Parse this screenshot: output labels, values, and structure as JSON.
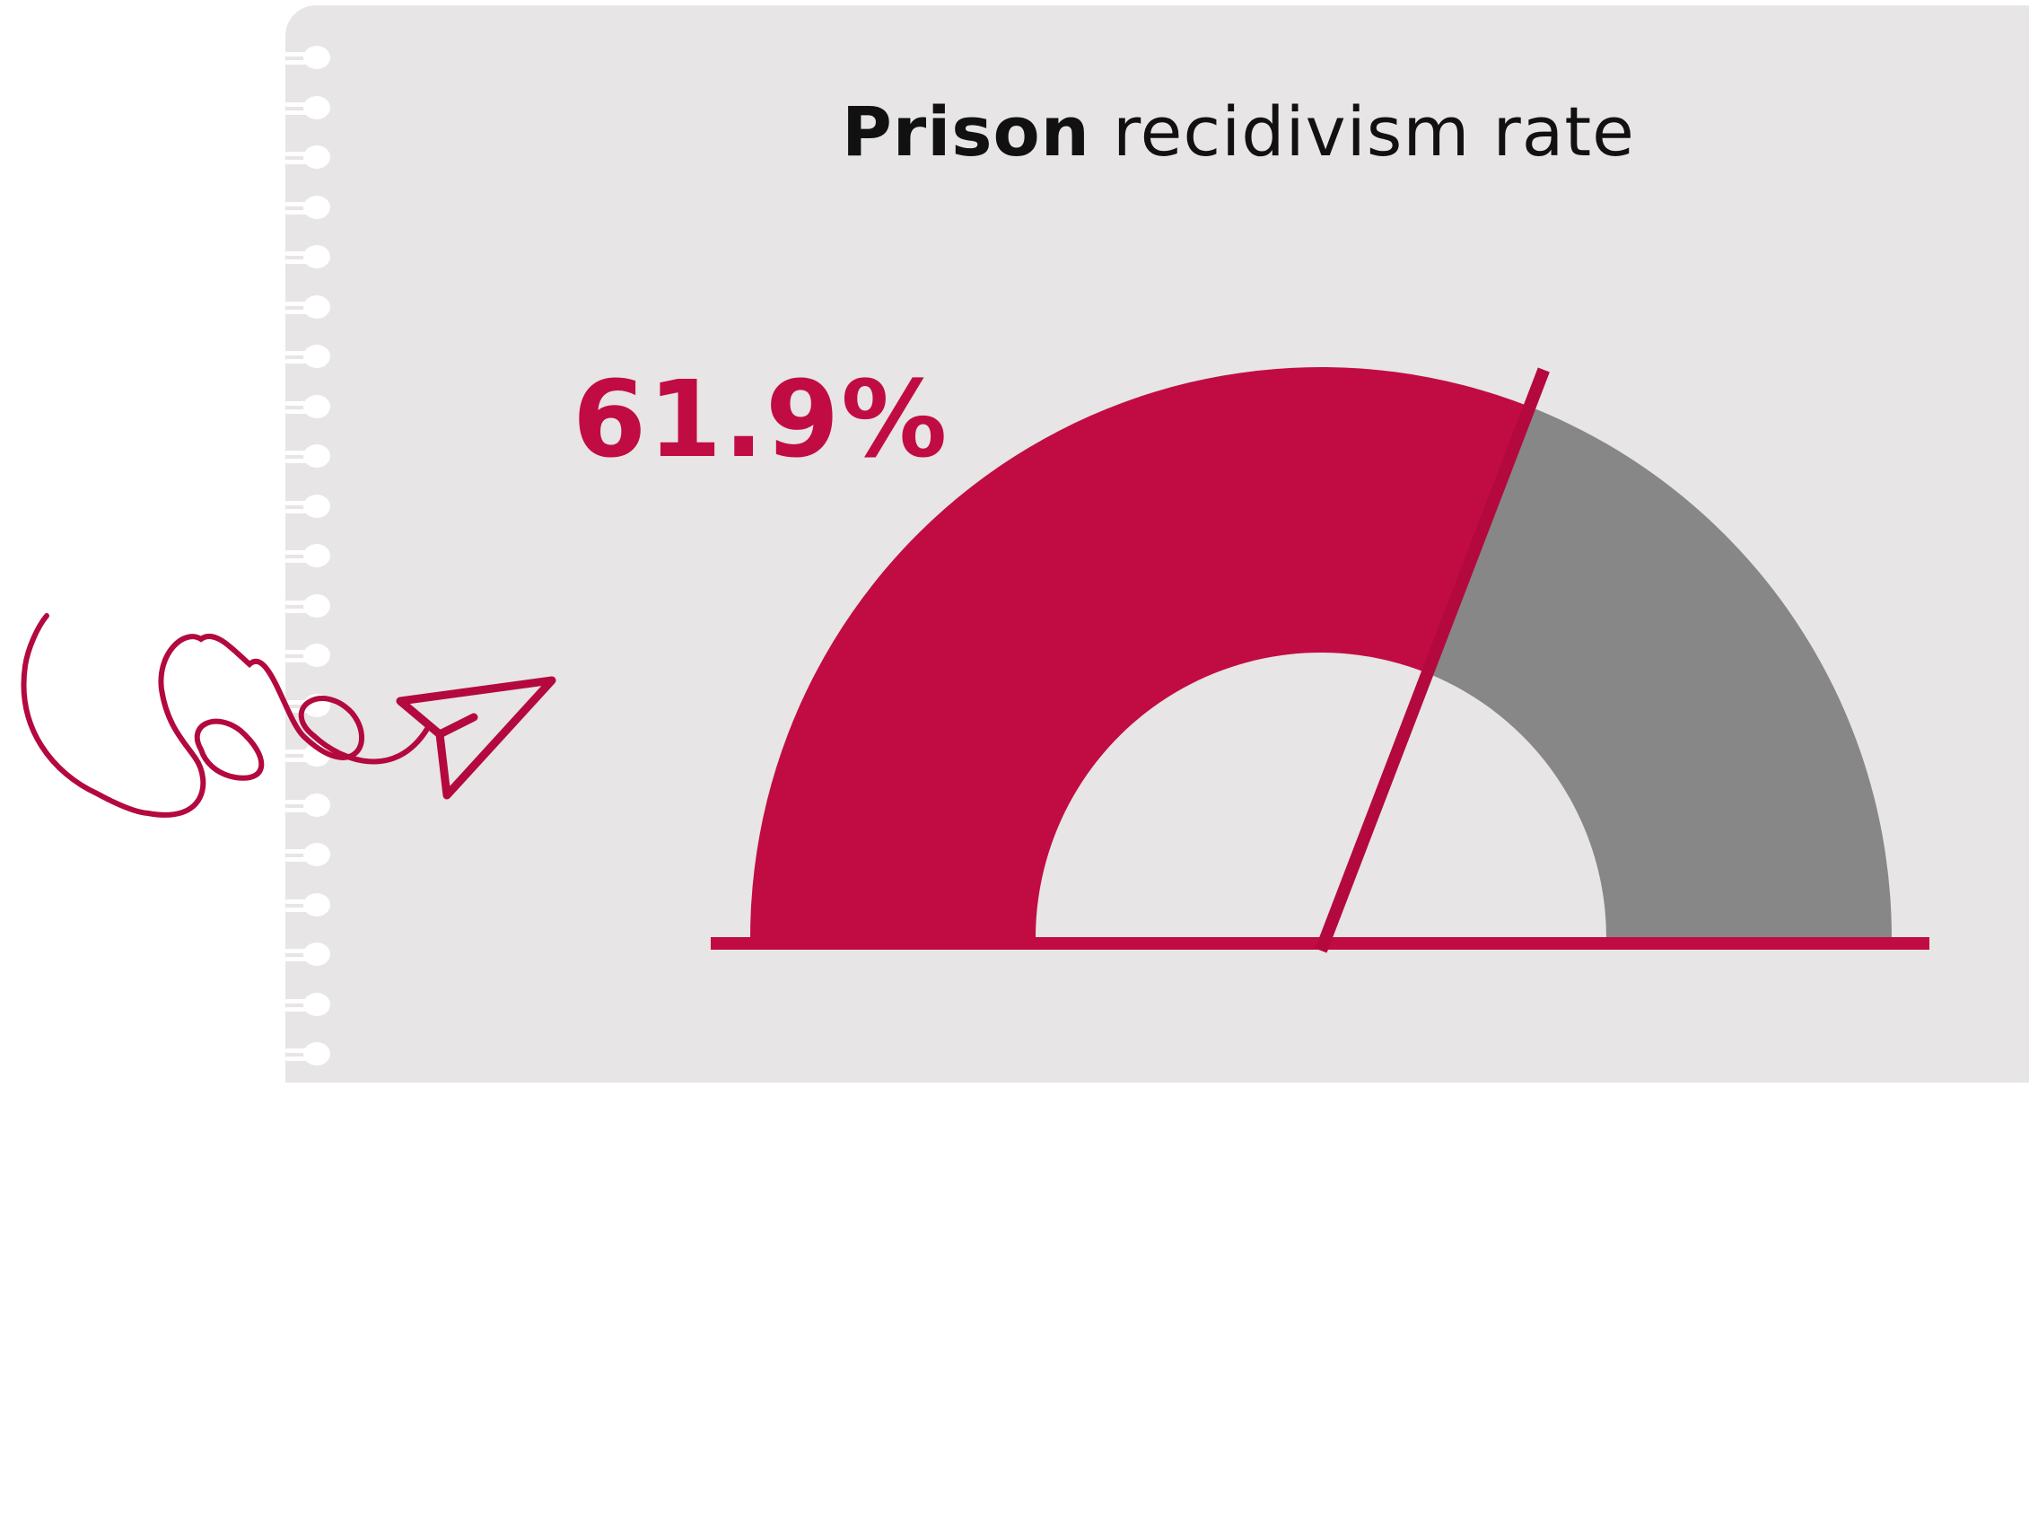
{
  "colors": {
    "accent": "#c10c43",
    "remainder": "#878787",
    "paper": "#e7e5e6",
    "needle": "#b3093f"
  },
  "title": {
    "bold": "Prison",
    "regular": "recidivism rate"
  },
  "value_label": "61.9%",
  "decorations": [
    "spiral-binding",
    "paper-plane-icon",
    "loop-doodle"
  ],
  "chart_data": {
    "type": "gauge",
    "title": "Prison recidivism rate",
    "value": 61.9,
    "unit": "%",
    "range": [
      0,
      100
    ],
    "segments": [
      {
        "value": 61.9,
        "color": "#c10c43"
      },
      {
        "value": 38.1,
        "color": "#878787"
      }
    ]
  }
}
